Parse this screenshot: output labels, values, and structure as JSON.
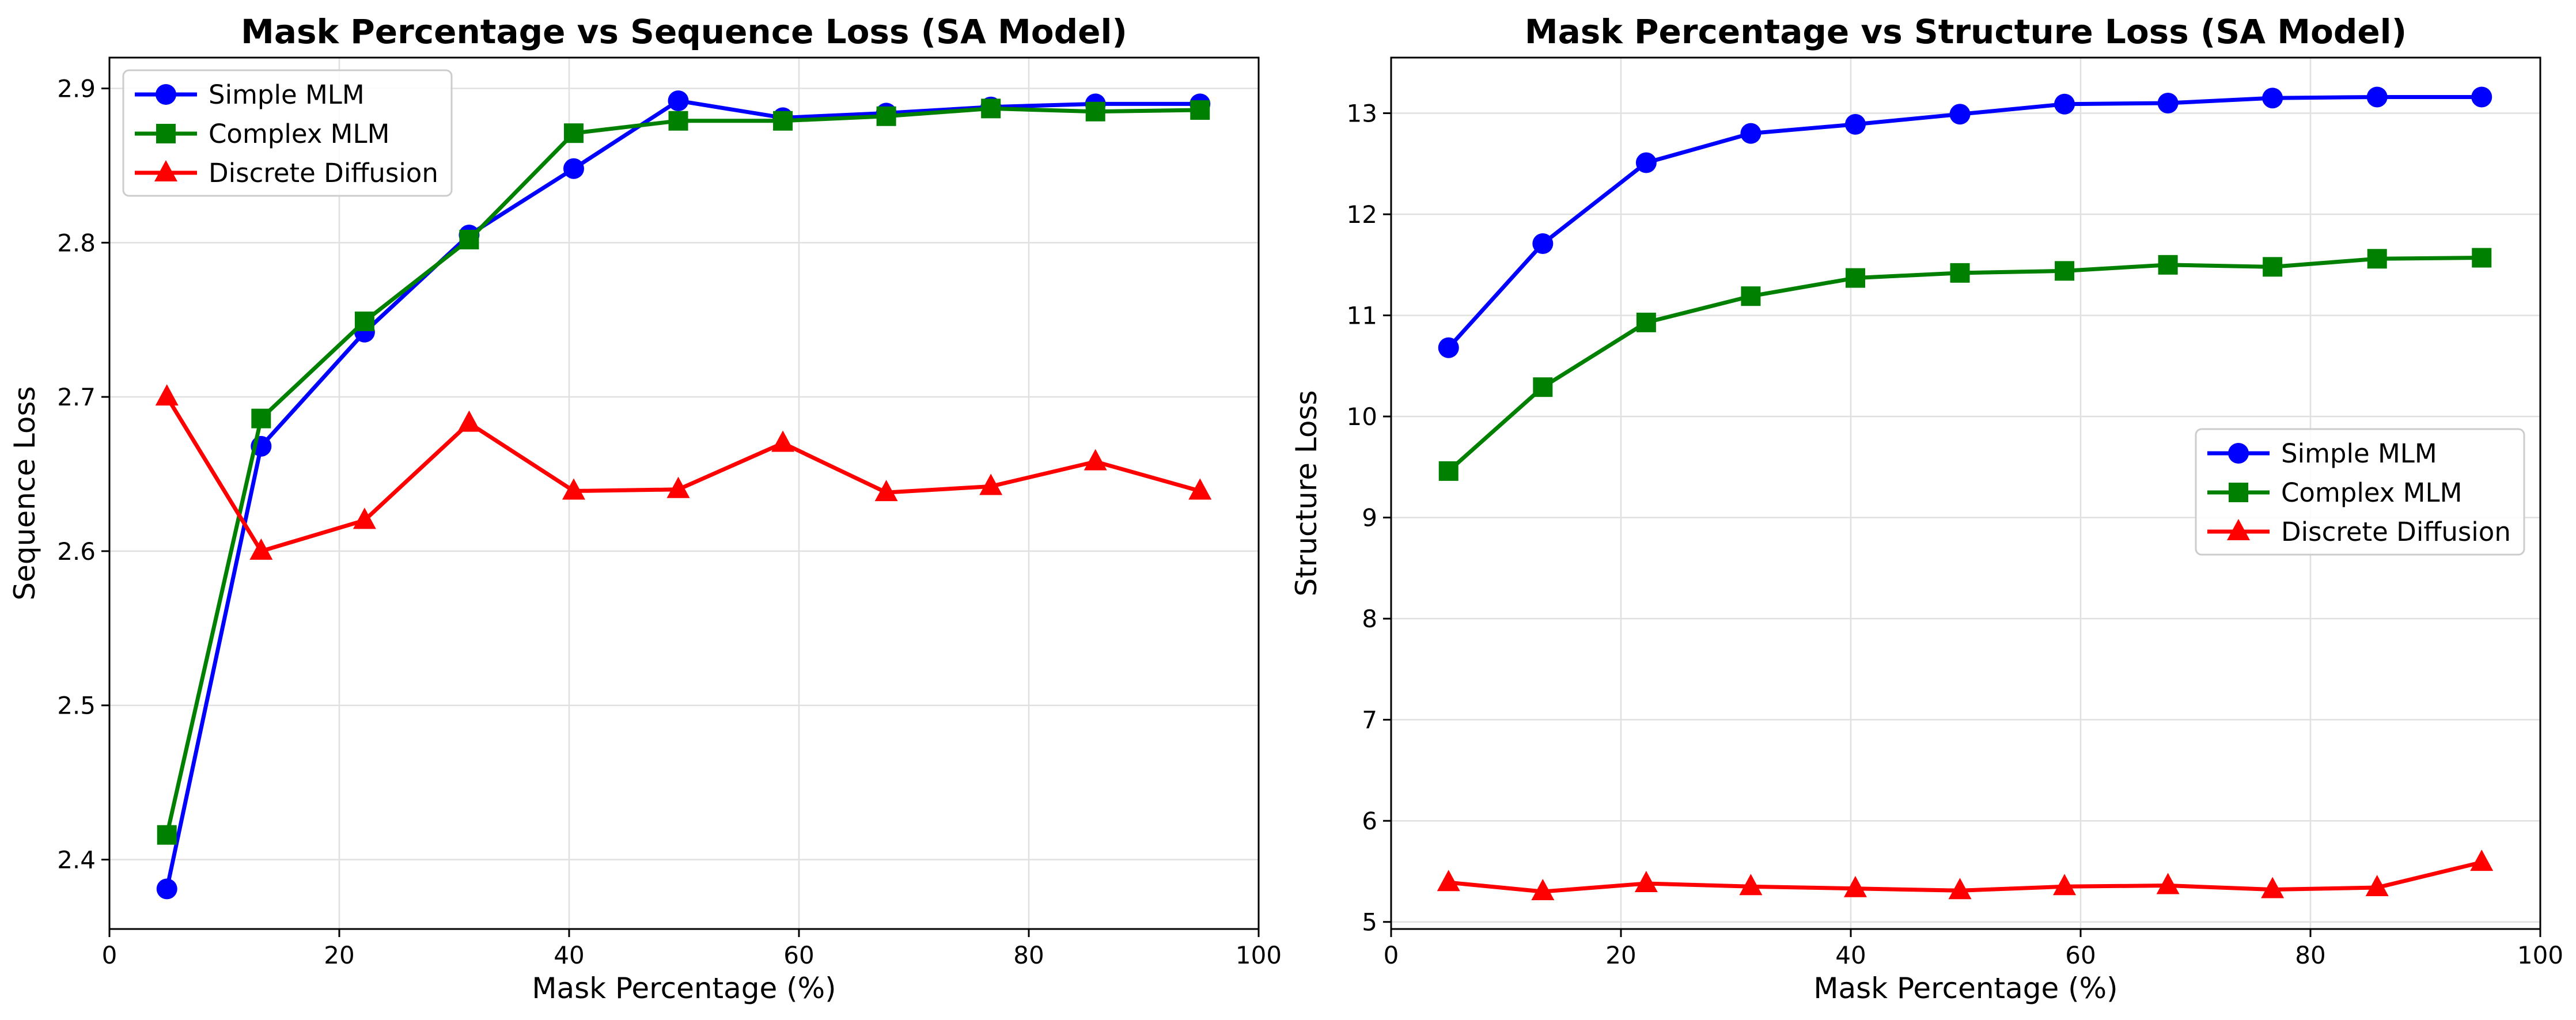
{
  "chart_data": [
    {
      "type": "line",
      "title": "Mask Percentage vs Sequence Loss (SA Model)",
      "xlabel": "Mask Percentage (%)",
      "ylabel": "Sequence Loss",
      "xlim": [
        0,
        100
      ],
      "ylim": [
        2.355,
        2.92
      ],
      "xticks": [
        0,
        20,
        40,
        60,
        80,
        100
      ],
      "xtick_labels": [
        "0",
        "20",
        "40",
        "60",
        "80",
        "100"
      ],
      "yticks": [
        2.4,
        2.5,
        2.6,
        2.7,
        2.8,
        2.9
      ],
      "ytick_labels": [
        "2.4",
        "2.5",
        "2.6",
        "2.7",
        "2.8",
        "2.9"
      ],
      "grid": true,
      "legend_position": "upper-left",
      "x": [
        5,
        13.2,
        22.2,
        31.3,
        40.4,
        49.5,
        58.6,
        67.6,
        76.7,
        85.8,
        94.9
      ],
      "series": [
        {
          "name": "Simple MLM",
          "color": "#0000ff",
          "marker": "circle",
          "values": [
            2.381,
            2.668,
            2.742,
            2.805,
            2.848,
            2.892,
            2.881,
            2.884,
            2.888,
            2.89,
            2.89
          ]
        },
        {
          "name": "Complex MLM",
          "color": "#008000",
          "marker": "square",
          "values": [
            2.416,
            2.686,
            2.749,
            2.802,
            2.871,
            2.879,
            2.879,
            2.882,
            2.887,
            2.885,
            2.886
          ]
        },
        {
          "name": "Discrete Diffusion",
          "color": "#ff0000",
          "marker": "triangle",
          "values": [
            2.7,
            2.6,
            2.62,
            2.683,
            2.639,
            2.64,
            2.67,
            2.638,
            2.642,
            2.658,
            2.639
          ]
        }
      ]
    },
    {
      "type": "line",
      "title": "Mask Percentage vs Structure Loss (SA Model)",
      "xlabel": "Mask Percentage (%)",
      "ylabel": "Structure Loss",
      "xlim": [
        0,
        100
      ],
      "ylim": [
        4.93,
        13.55
      ],
      "xticks": [
        0,
        20,
        40,
        60,
        80,
        100
      ],
      "xtick_labels": [
        "0",
        "20",
        "40",
        "60",
        "80",
        "100"
      ],
      "yticks": [
        5,
        6,
        7,
        8,
        9,
        10,
        11,
        12,
        13
      ],
      "ytick_labels": [
        "5",
        "6",
        "7",
        "8",
        "9",
        "10",
        "11",
        "12",
        "13"
      ],
      "grid": true,
      "legend_position": "center-right",
      "x": [
        5,
        13.2,
        22.2,
        31.3,
        40.4,
        49.5,
        58.6,
        67.6,
        76.7,
        85.8,
        94.9
      ],
      "series": [
        {
          "name": "Simple MLM",
          "color": "#0000ff",
          "marker": "circle",
          "values": [
            10.68,
            11.71,
            12.51,
            12.8,
            12.89,
            12.99,
            13.09,
            13.1,
            13.15,
            13.16,
            13.16
          ]
        },
        {
          "name": "Complex MLM",
          "color": "#008000",
          "marker": "square",
          "values": [
            9.46,
            10.29,
            10.93,
            11.19,
            11.37,
            11.42,
            11.44,
            11.5,
            11.48,
            11.56,
            11.57
          ]
        },
        {
          "name": "Discrete Diffusion",
          "color": "#ff0000",
          "marker": "triangle",
          "values": [
            5.39,
            5.3,
            5.38,
            5.35,
            5.33,
            5.31,
            5.35,
            5.36,
            5.32,
            5.34,
            5.59
          ]
        }
      ]
    }
  ]
}
